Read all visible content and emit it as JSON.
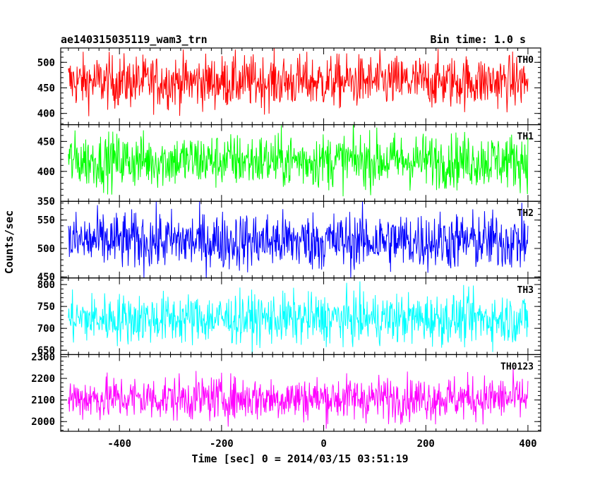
{
  "header": {
    "left_title": "ae140315035119_wam3_trn",
    "right_title": "Bin time: 1.0 s"
  },
  "chart_data": {
    "type": "line",
    "xlabel": "Time [sec] 0 = 2014/03/15 03:51:19",
    "ylabel": "Counts/sec",
    "xlim": [
      -515,
      425
    ],
    "xticks": [
      -400,
      -200,
      0,
      200,
      400
    ],
    "x_range": [
      -500,
      400
    ],
    "bin_time": 1.0,
    "panels": [
      {
        "name": "TH0",
        "color": "#ff0000",
        "ylim": [
          378,
          528
        ],
        "yticks": [
          400,
          450,
          500
        ],
        "mean": 462,
        "noise": 26
      },
      {
        "name": "TH1",
        "color": "#00ff00",
        "ylim": [
          350,
          478
        ],
        "yticks": [
          350,
          400,
          450
        ],
        "mean": 418,
        "noise": 23
      },
      {
        "name": "TH2",
        "color": "#0000ff",
        "ylim": [
          448,
          583
        ],
        "yticks": [
          450,
          500,
          550
        ],
        "mean": 513,
        "noise": 26
      },
      {
        "name": "TH3",
        "color": "#00ffff",
        "ylim": [
          640,
          815
        ],
        "yticks": [
          650,
          700,
          750,
          800
        ],
        "mean": 722,
        "noise": 29
      },
      {
        "name": "TH0123",
        "color": "#ff00ff",
        "ylim": [
          1955,
          2310
        ],
        "yticks": [
          2000,
          2100,
          2200,
          2300
        ],
        "mean": 2108,
        "noise": 52
      }
    ]
  }
}
